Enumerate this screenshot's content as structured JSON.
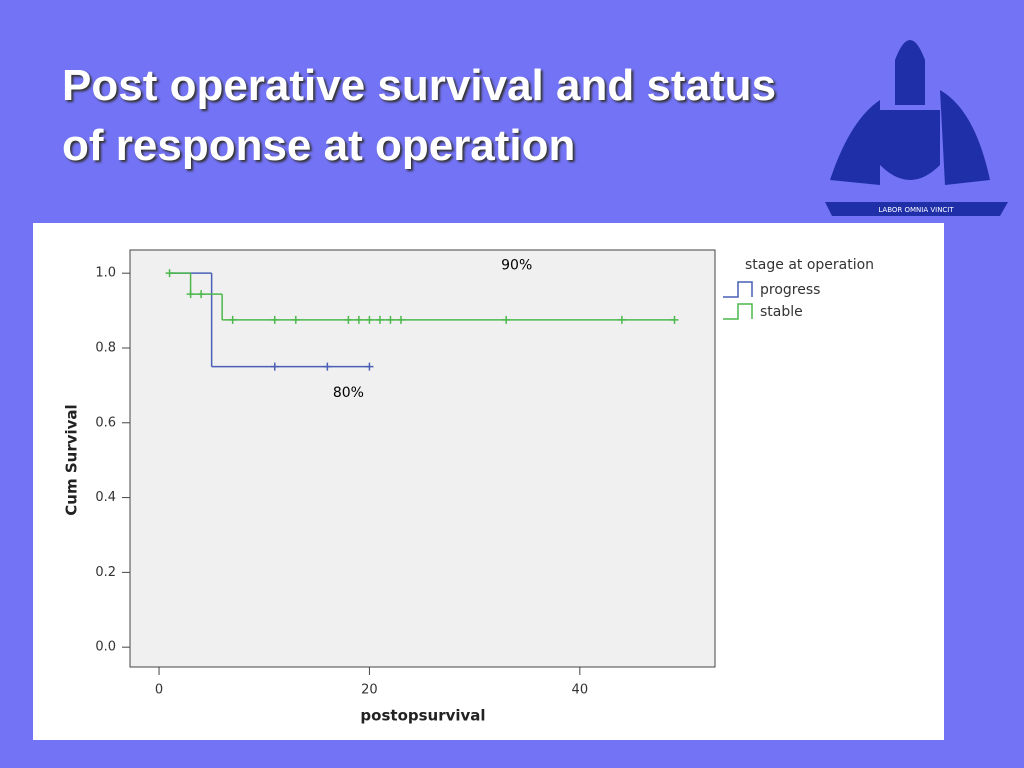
{
  "title_lines": [
    "Post operative survival and status",
    "of response at operation"
  ],
  "motto": "LABOR OMNIA VINCIT",
  "chart_data": {
    "type": "kaplan-meier",
    "xlabel": "postopsurvival",
    "ylabel": "Cum Survival",
    "xlim": [
      -2.76,
      52.85
    ],
    "ylim": [
      -0.053,
      1.062
    ],
    "xticks": [
      0,
      20,
      40
    ],
    "yticks": [
      {
        "value": 0,
        "label": "0.0"
      },
      0.2,
      0.4,
      0.6,
      0.8,
      {
        "value": 1,
        "label": "1.0"
      }
    ],
    "legend_title": "stage at operation",
    "legend": "right",
    "series": [
      {
        "name": "progress",
        "color": "#4a5fb5",
        "x": [
          1,
          5,
          20
        ],
        "values": [
          1.0,
          0.75,
          0.75
        ],
        "censored_x": [
          11,
          16,
          20
        ],
        "censored_y": [
          0.75,
          0.75,
          0.75
        ]
      },
      {
        "name": "stable",
        "color": "#4cb84c",
        "x": [
          1,
          3,
          6,
          49
        ],
        "values": [
          1.0,
          0.944,
          0.875,
          0.875
        ],
        "censored_x": [
          1,
          3,
          4,
          7,
          11,
          13,
          18,
          19,
          20,
          21,
          22,
          23,
          33,
          44,
          49
        ],
        "censored_y": [
          1.0,
          0.944,
          0.944,
          0.875,
          0.875,
          0.875,
          0.875,
          0.875,
          0.875,
          0.875,
          0.875,
          0.875,
          0.875,
          0.875,
          0.875
        ]
      }
    ],
    "annotations": [
      {
        "text": "90%",
        "x": 34,
        "y": 1.02
      },
      {
        "text": "80%",
        "x": 18,
        "y": 0.68
      }
    ]
  }
}
